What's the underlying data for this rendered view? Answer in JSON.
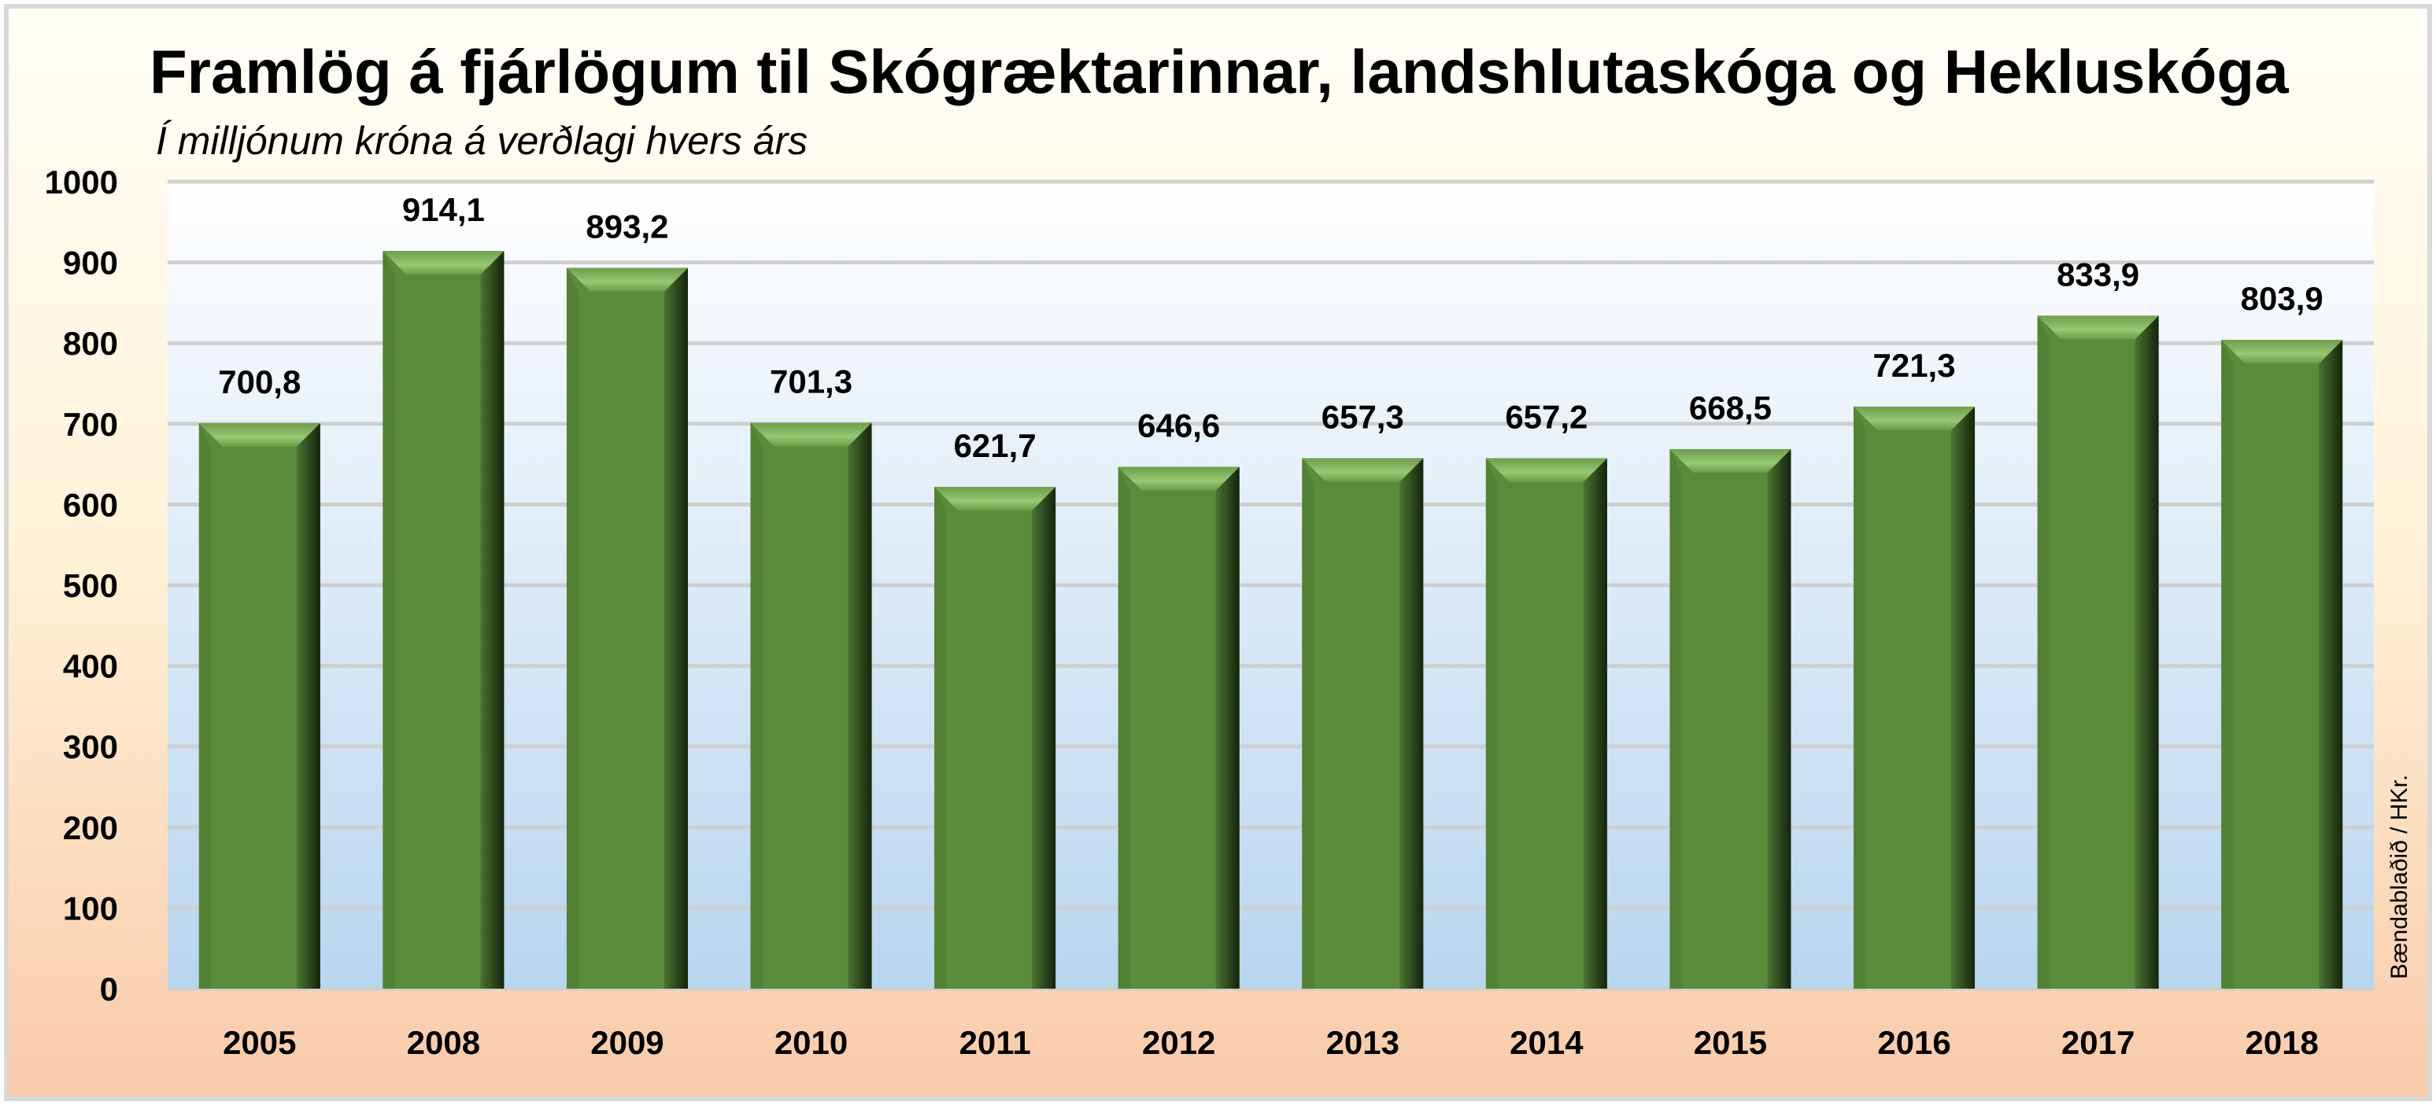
{
  "chart_data": {
    "type": "bar",
    "title": "Framlög á fjárlögum til Skógræktarinnar, landshlutaskóga og Hekluskóga",
    "subtitle": "Í milljónum króna á verðlagi hvers árs",
    "xlabel": "",
    "ylabel": "",
    "ylim": [
      0,
      1000
    ],
    "yticks": [
      0,
      100,
      200,
      300,
      400,
      500,
      600,
      700,
      800,
      900,
      1000
    ],
    "grid": true,
    "categories": [
      "2005",
      "2008",
      "2009",
      "2010",
      "2011",
      "2012",
      "2013",
      "2014",
      "2015",
      "2016",
      "2017",
      "2018"
    ],
    "values": [
      700.8,
      914.1,
      893.2,
      701.3,
      621.7,
      646.6,
      657.3,
      657.2,
      668.5,
      721.3,
      833.9,
      803.9
    ],
    "data_labels": [
      "700,8",
      "914,1",
      "893,2",
      "701,3",
      "621,7",
      "646,6",
      "657,3",
      "657,2",
      "668,5",
      "721,3",
      "833,9",
      "803,9"
    ],
    "source": "Bændablaðið / HKr.",
    "colors": {
      "bar": "#5b8a3a",
      "bar_light": "#8fc26a",
      "bar_dark": "#1f3312",
      "grid": "#cfcfcf"
    }
  }
}
